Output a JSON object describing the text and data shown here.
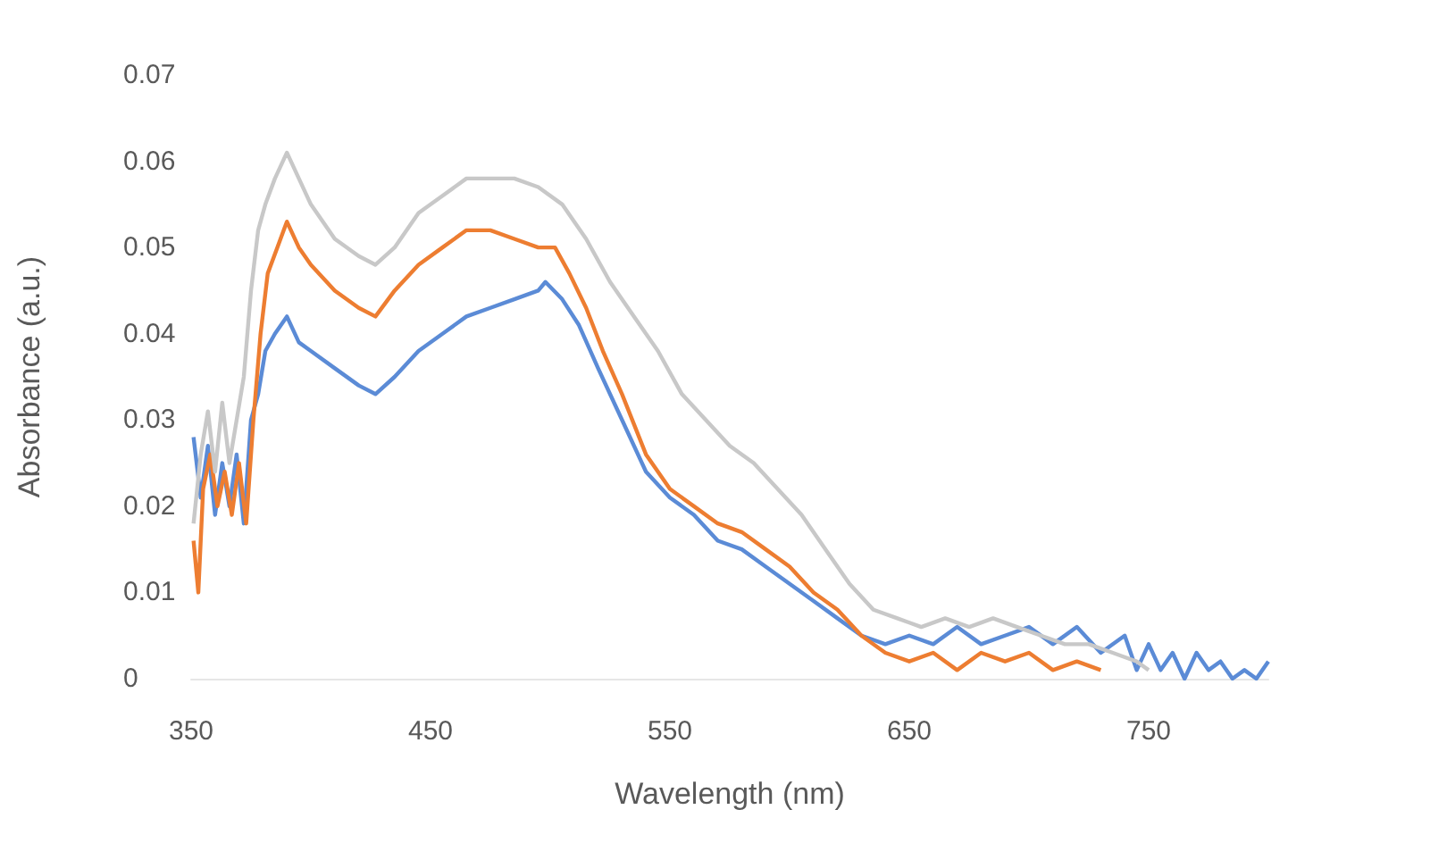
{
  "chart_data": {
    "type": "line",
    "xlabel": "Wavelength (nm)",
    "ylabel": "Absorbance (a.u.)",
    "xlim": [
      350,
      800
    ],
    "xticks": [
      350,
      450,
      550,
      650,
      750
    ],
    "ylim": [
      0,
      0.07
    ],
    "yticks": [
      0,
      0.01,
      0.02,
      0.03,
      0.04,
      0.05,
      0.06,
      0.07
    ],
    "grid": false,
    "marker": "none",
    "line_style": "solid",
    "series": [
      {
        "color": "#5b8bd6",
        "x": [
          351,
          354,
          357,
          360,
          363,
          366,
          369,
          372,
          375,
          378,
          381,
          385,
          390,
          395,
          400,
          410,
          420,
          427,
          435,
          445,
          455,
          465,
          475,
          485,
          495,
          498,
          505,
          512,
          520,
          530,
          540,
          550,
          560,
          570,
          580,
          590,
          600,
          610,
          620,
          630,
          640,
          650,
          660,
          670,
          680,
          690,
          700,
          710,
          720,
          730,
          740,
          745,
          750,
          755,
          760,
          765,
          770,
          775,
          780,
          785,
          790,
          795,
          800
        ],
        "values": [
          0.028,
          0.021,
          0.027,
          0.019,
          0.025,
          0.02,
          0.026,
          0.018,
          0.03,
          0.033,
          0.038,
          0.04,
          0.042,
          0.039,
          0.038,
          0.036,
          0.034,
          0.033,
          0.035,
          0.038,
          0.04,
          0.042,
          0.043,
          0.044,
          0.045,
          0.046,
          0.044,
          0.041,
          0.036,
          0.03,
          0.024,
          0.021,
          0.019,
          0.016,
          0.015,
          0.013,
          0.011,
          0.009,
          0.007,
          0.005,
          0.004,
          0.005,
          0.004,
          0.006,
          0.004,
          0.005,
          0.006,
          0.004,
          0.006,
          0.003,
          0.005,
          0.001,
          0.004,
          0.001,
          0.003,
          0.0,
          0.003,
          0.001,
          0.002,
          0.0,
          0.001,
          0.0,
          0.002
        ]
      },
      {
        "color": "#ed7d31",
        "x": [
          351,
          353,
          355,
          358,
          361,
          364,
          367,
          370,
          373,
          376,
          379,
          382,
          386,
          390,
          395,
          400,
          410,
          420,
          427,
          435,
          445,
          455,
          465,
          475,
          485,
          495,
          502,
          508,
          515,
          522,
          530,
          540,
          550,
          560,
          570,
          580,
          590,
          600,
          610,
          620,
          630,
          640,
          650,
          660,
          670,
          680,
          690,
          700,
          710,
          720,
          730
        ],
        "values": [
          0.016,
          0.01,
          0.022,
          0.026,
          0.02,
          0.024,
          0.019,
          0.025,
          0.018,
          0.03,
          0.04,
          0.047,
          0.05,
          0.053,
          0.05,
          0.048,
          0.045,
          0.043,
          0.042,
          0.045,
          0.048,
          0.05,
          0.052,
          0.052,
          0.051,
          0.05,
          0.05,
          0.047,
          0.043,
          0.038,
          0.033,
          0.026,
          0.022,
          0.02,
          0.018,
          0.017,
          0.015,
          0.013,
          0.01,
          0.008,
          0.005,
          0.003,
          0.002,
          0.003,
          0.001,
          0.003,
          0.002,
          0.003,
          0.001,
          0.002,
          0.001
        ]
      },
      {
        "color": "#c8c8c8",
        "x": [
          351,
          354,
          357,
          360,
          363,
          366,
          369,
          372,
          375,
          378,
          381,
          385,
          390,
          395,
          400,
          410,
          420,
          427,
          435,
          445,
          455,
          465,
          475,
          485,
          495,
          505,
          515,
          525,
          535,
          545,
          555,
          565,
          575,
          585,
          595,
          605,
          615,
          625,
          635,
          645,
          655,
          665,
          675,
          685,
          695,
          705,
          715,
          725,
          735,
          745,
          750
        ],
        "values": [
          0.018,
          0.026,
          0.031,
          0.024,
          0.032,
          0.025,
          0.03,
          0.035,
          0.045,
          0.052,
          0.055,
          0.058,
          0.061,
          0.058,
          0.055,
          0.051,
          0.049,
          0.048,
          0.05,
          0.054,
          0.056,
          0.058,
          0.058,
          0.058,
          0.057,
          0.055,
          0.051,
          0.046,
          0.042,
          0.038,
          0.033,
          0.03,
          0.027,
          0.025,
          0.022,
          0.019,
          0.015,
          0.011,
          0.008,
          0.007,
          0.006,
          0.007,
          0.006,
          0.007,
          0.006,
          0.005,
          0.004,
          0.004,
          0.003,
          0.002,
          0.001
        ]
      }
    ]
  }
}
